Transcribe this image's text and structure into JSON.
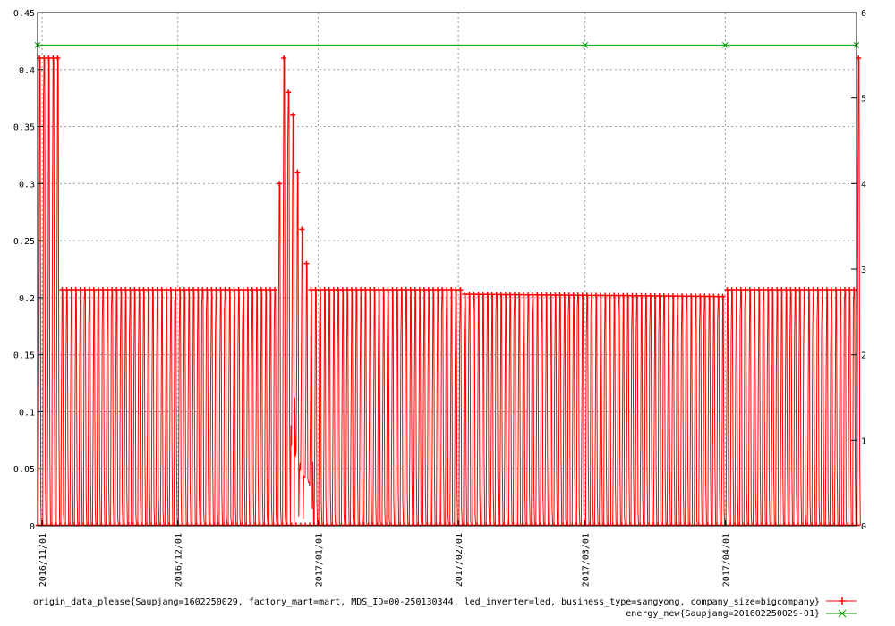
{
  "chart_data": {
    "type": "line",
    "title": "",
    "xlabel": "",
    "ylabel": "",
    "grid": true,
    "legend_position": "bottom-right",
    "x_type": "date",
    "x_range": [
      "2016-10-31",
      "2017-04-30"
    ],
    "x_tick_labels": [
      "2016/11/01",
      "2016/12/01",
      "2017/01/01",
      "2017/02/01",
      "2017/03/01",
      "2017/04/01"
    ],
    "x_tick_dates": [
      "2016-11-01",
      "2016-12-01",
      "2017-01-01",
      "2017-02-01",
      "2017-03-01",
      "2017-04-01"
    ],
    "y_left_range": [
      0,
      0.45
    ],
    "y_left_ticks": [
      "0",
      "0.05",
      "0.1",
      "0.15",
      "0.2",
      "0.25",
      "0.3",
      "0.35",
      "0.4",
      "0.45"
    ],
    "y_right_range": [
      0,
      6
    ],
    "y_right_ticks": [
      "0",
      "1",
      "2",
      "3",
      "4",
      "5",
      "6"
    ],
    "series": [
      {
        "name": "origin_data_please{Saupjang=1602250029, factory_mart=mart, MDS_ID=00-250130344, led_inverter=led, business_type=sangyong, company_size=bigcompany}",
        "axis": "left",
        "color": "#ff0000",
        "marker": "plus",
        "style": "daily oscillation between 0 and the daily peak",
        "daily_peak_envelope": [
          {
            "date": "2016-10-31",
            "value": 0.41
          },
          {
            "date": "2016-11-04",
            "value": 0.41
          },
          {
            "date": "2016-11-05",
            "value": 0.207
          },
          {
            "date": "2016-12-22",
            "value": 0.207
          },
          {
            "date": "2016-12-23",
            "value": 0.3
          },
          {
            "date": "2016-12-24",
            "value": 0.41
          },
          {
            "date": "2016-12-25",
            "value": 0.38
          },
          {
            "date": "2016-12-26",
            "value": 0.36
          },
          {
            "date": "2016-12-27",
            "value": 0.31
          },
          {
            "date": "2016-12-28",
            "value": 0.26
          },
          {
            "date": "2016-12-29",
            "value": 0.23
          },
          {
            "date": "2016-12-30",
            "value": 0.207
          },
          {
            "date": "2017-02-01",
            "value": 0.207
          },
          {
            "date": "2017-02-02",
            "value": 0.203
          },
          {
            "date": "2017-03-31",
            "value": 0.201
          },
          {
            "date": "2017-04-01",
            "value": 0.207
          },
          {
            "date": "2017-04-29",
            "value": 0.207
          },
          {
            "date": "2017-04-30",
            "value": 0.41
          }
        ],
        "gaps": [
          {
            "from": "2016-12-26",
            "to": "2016-12-29",
            "note": "values drop smoothly from peak toward 0"
          }
        ]
      },
      {
        "name": "energy_new{Saupjang=201602250029-01}",
        "axis": "right",
        "color": "#00a000",
        "marker": "x",
        "points": [
          {
            "date": "2016-10-31",
            "value": 5.62
          },
          {
            "date": "2017-03-01",
            "value": 5.62
          },
          {
            "date": "2017-04-01",
            "value": 5.62
          },
          {
            "date": "2017-04-30",
            "value": 5.62
          }
        ]
      }
    ]
  },
  "legend": [
    {
      "label": "origin_data_please{Saupjang=1602250029, factory_mart=mart, MDS_ID=00-250130344, led_inverter=led, business_type=sangyong, company_size=bigcompany}",
      "color": "#ff0000",
      "marker": "plus"
    },
    {
      "label": "energy_new{Saupjang=201602250029-01}",
      "color": "#00a000",
      "marker": "x"
    }
  ]
}
